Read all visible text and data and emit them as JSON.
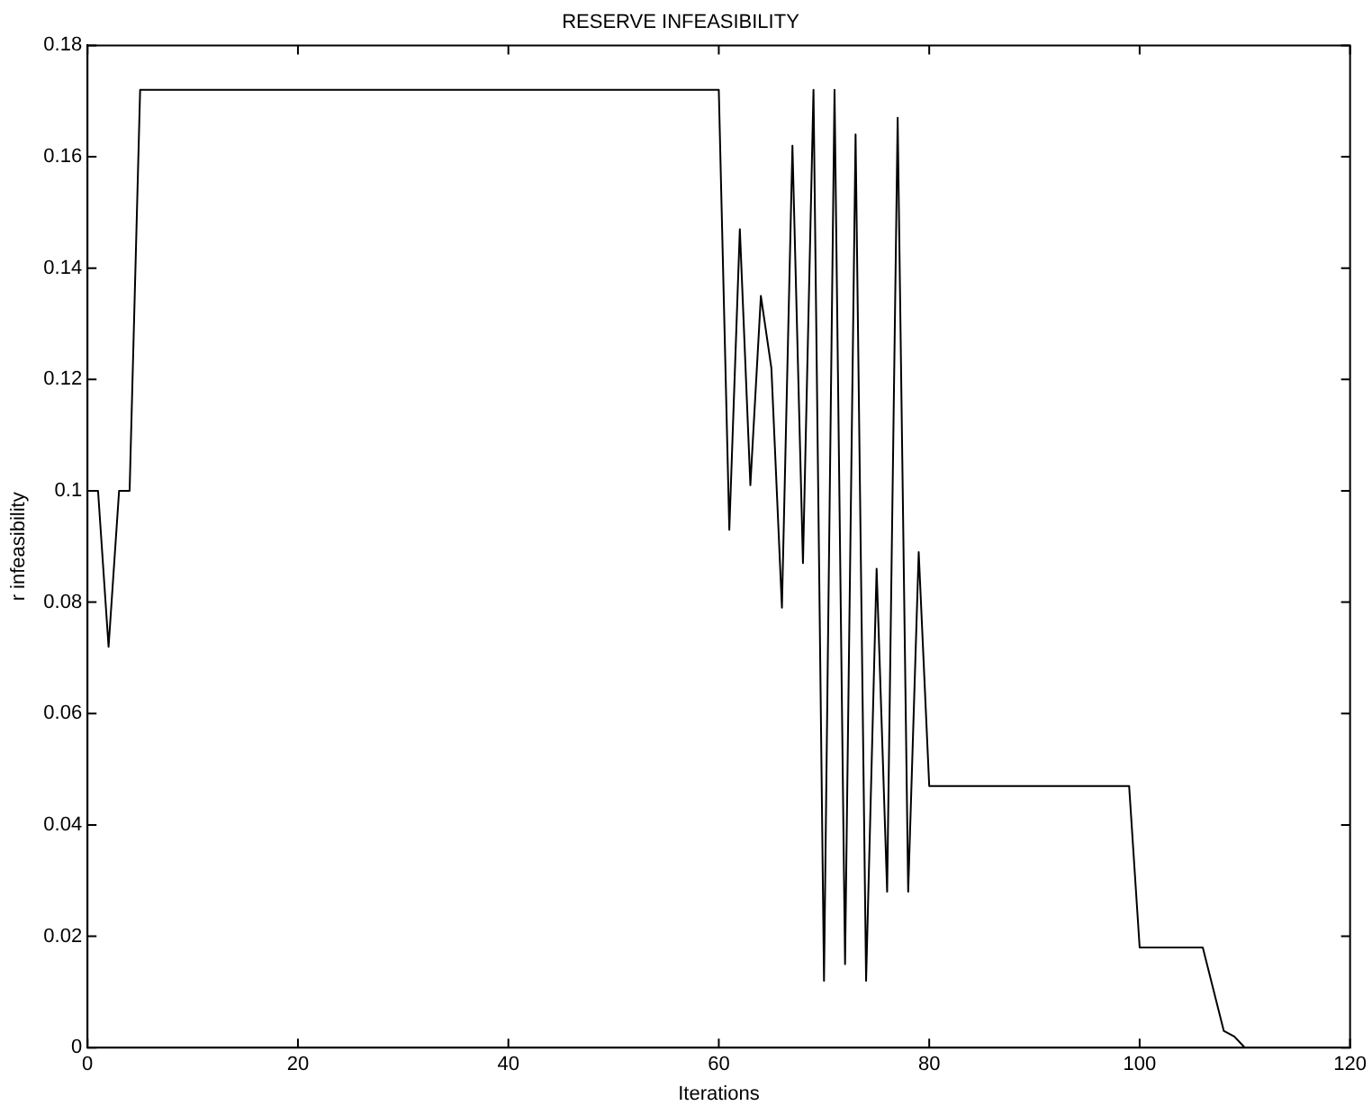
{
  "chart_data": {
    "type": "line",
    "title": "RESERVE INFEASIBILITY",
    "xlabel": "Iterations",
    "ylabel": "r infeasibility",
    "x": [
      0,
      1,
      2,
      3,
      4,
      5,
      60,
      61,
      62,
      63,
      64,
      65,
      66,
      67,
      68,
      69,
      70,
      71,
      72,
      73,
      74,
      75,
      76,
      77,
      78,
      79,
      80,
      99,
      100,
      106,
      108,
      109,
      110
    ],
    "series": [
      {
        "color": "#000000",
        "values": [
          0.1,
          0.1,
          0.072,
          0.1,
          0.1,
          0.172,
          0.172,
          0.093,
          0.147,
          0.101,
          0.135,
          0.122,
          0.079,
          0.162,
          0.087,
          0.172,
          0.012,
          0.172,
          0.015,
          0.164,
          0.012,
          0.086,
          0.028,
          0.167,
          0.028,
          0.089,
          0.047,
          0.047,
          0.018,
          0.018,
          0.003,
          0.002,
          0
        ]
      }
    ],
    "xlim": [
      0,
      120
    ],
    "xticks": [
      0,
      20,
      40,
      60,
      80,
      100,
      120
    ],
    "ylim": [
      0,
      0.18
    ],
    "yticks": [
      0,
      0.02,
      0.04,
      0.06,
      0.08,
      0.1,
      0.12,
      0.14,
      0.16,
      0.18
    ],
    "grid": false,
    "legend": false,
    "marker": "none",
    "line_style": "solid"
  }
}
